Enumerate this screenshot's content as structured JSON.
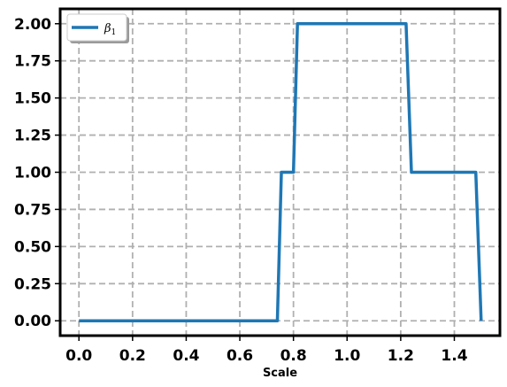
{
  "chart_data": {
    "type": "line",
    "title": "",
    "xlabel": "Scale",
    "ylabel": "",
    "xlim": [
      -0.07,
      1.57
    ],
    "ylim": [
      -0.1,
      2.1
    ],
    "xticks": [
      0.0,
      0.2,
      0.4,
      0.6,
      0.8,
      1.0,
      1.2,
      1.4
    ],
    "xtick_labels": [
      "0.0",
      "0.2",
      "0.4",
      "0.6",
      "0.8",
      "1.0",
      "1.2",
      "1.4"
    ],
    "yticks": [
      0.0,
      0.25,
      0.5,
      0.75,
      1.0,
      1.25,
      1.5,
      1.75,
      2.0
    ],
    "ytick_labels": [
      "0.00",
      "0.25",
      "0.50",
      "0.75",
      "1.00",
      "1.25",
      "1.50",
      "1.75",
      "2.00"
    ],
    "grid": true,
    "legend_position": "top-left",
    "series": [
      {
        "name": "β1",
        "legend_base": "β",
        "legend_sub": "1",
        "color": "#1f77b4",
        "x": [
          0.0,
          0.74,
          0.755,
          0.8,
          0.815,
          1.22,
          1.24,
          1.48,
          1.5
        ],
        "y": [
          0.0,
          0.0,
          1.0,
          1.0,
          2.0,
          2.0,
          1.0,
          1.0,
          0.0
        ]
      }
    ]
  }
}
